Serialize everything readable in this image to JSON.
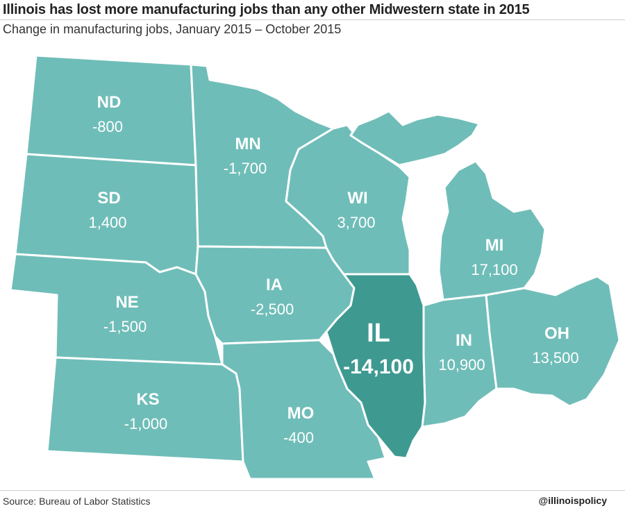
{
  "header": {
    "title": "Illinois has lost more manufacturing jobs than any other Midwestern state in 2015",
    "subtitle": "Change in manufacturing jobs, January 2015 – October 2015"
  },
  "footer": {
    "source": "Source: Bureau of Labor Statistics",
    "handle": "@illinoispolicy"
  },
  "colors": {
    "state_fill": "#6fbdb8",
    "highlight_fill": "#3e9a91",
    "border": "#ffffff"
  },
  "states": {
    "nd": {
      "abbr": "ND",
      "value": "-800"
    },
    "sd": {
      "abbr": "SD",
      "value": "1,400"
    },
    "ne": {
      "abbr": "NE",
      "value": "-1,500"
    },
    "ks": {
      "abbr": "KS",
      "value": "-1,000"
    },
    "mn": {
      "abbr": "MN",
      "value": "-1,700"
    },
    "ia": {
      "abbr": "IA",
      "value": "-2,500"
    },
    "mo": {
      "abbr": "MO",
      "value": "-400"
    },
    "wi": {
      "abbr": "WI",
      "value": "3,700"
    },
    "il": {
      "abbr": "IL",
      "value": "-14,100"
    },
    "mi": {
      "abbr": "MI",
      "value": "17,100"
    },
    "in": {
      "abbr": "IN",
      "value": "10,900"
    },
    "oh": {
      "abbr": "OH",
      "value": "13,500"
    }
  }
}
